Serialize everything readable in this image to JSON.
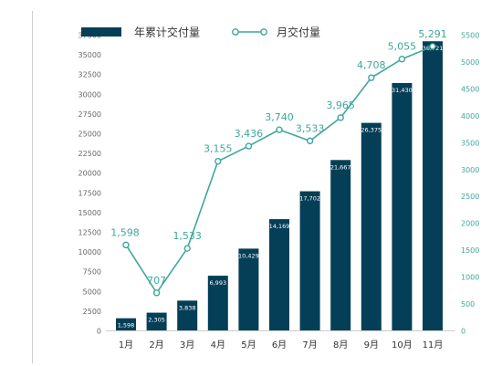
{
  "chart_data": {
    "type": "bar+line",
    "categories": [
      "1月",
      "2月",
      "3月",
      "4月",
      "5月",
      "6月",
      "7月",
      "8月",
      "9月",
      "10月",
      "11月"
    ],
    "series": [
      {
        "name": "年累计交付量",
        "type": "bar",
        "axis": "left",
        "values": [
          1598,
          2305,
          3838,
          6993,
          10429,
          14169,
          17702,
          21667,
          26375,
          31430,
          36721
        ],
        "labels": [
          "1,598",
          "2,305",
          "3,838",
          "6,993",
          "10,429",
          "14,169",
          "17,702",
          "21,667",
          "26,375",
          "31,430",
          "36,721"
        ]
      },
      {
        "name": "月交付量",
        "type": "line",
        "axis": "right",
        "values": [
          1598,
          707,
          1533,
          3155,
          3436,
          3740,
          3533,
          3965,
          4708,
          5055,
          5291
        ],
        "labels": [
          "1,598",
          "707",
          "1,533",
          "3,155",
          "3,436",
          "3,740",
          "3,533",
          "3,965",
          "4,708",
          "5,055",
          "5,291"
        ]
      }
    ],
    "y_left": {
      "min": 0,
      "max": 37500,
      "step": 2500
    },
    "y_right": {
      "min": 0,
      "max": 5500,
      "step": 500
    },
    "legend": "top-left",
    "grid": false,
    "colors": {
      "bar": "#053f57",
      "line": "#3fa79a"
    }
  }
}
